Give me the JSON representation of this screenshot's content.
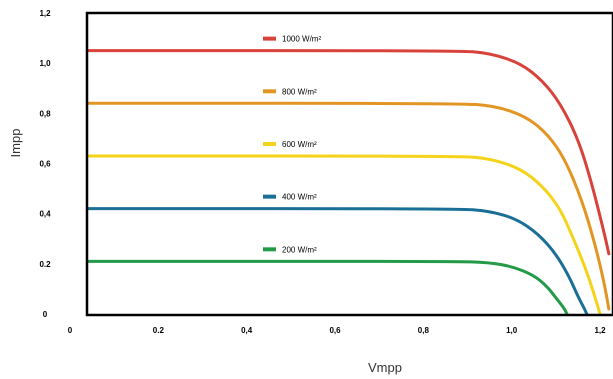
{
  "chart_data": {
    "type": "line",
    "title": "",
    "xlabel": "Vmpp",
    "ylabel": "Impp",
    "xlim": [
      0,
      1.22
    ],
    "ylim": [
      0,
      1.2
    ],
    "grid": false,
    "legend_placement": "inline-center",
    "x_ticks": [
      "0",
      "0.2",
      "0,4",
      "0,6",
      "0,8",
      "1,0",
      "1,2"
    ],
    "y_ticks": [
      "0",
      "0.2",
      "0,4",
      "0,6",
      "0,8",
      "1,0",
      "1,2"
    ],
    "x_tick_values": [
      0,
      0.2,
      0.4,
      0.6,
      0.8,
      1.0,
      1.2
    ],
    "y_tick_values": [
      0,
      0.2,
      0.4,
      0.6,
      0.8,
      1.0,
      1.2
    ],
    "series": [
      {
        "name": "1000 W/m²",
        "color": "#d9423a",
        "x": [
          0,
          0.88,
          0.95,
          1.02,
          1.07,
          1.11,
          1.15,
          1.18,
          1.21,
          1.22
        ],
        "y": [
          1.05,
          1.05,
          1.04,
          1.0,
          0.93,
          0.84,
          0.7,
          0.53,
          0.32,
          0.24
        ]
      },
      {
        "name": "800 W/m²",
        "color": "#e29523",
        "x": [
          0,
          0.88,
          0.96,
          1.03,
          1.08,
          1.12,
          1.16,
          1.19,
          1.21,
          1.22
        ],
        "y": [
          0.84,
          0.84,
          0.83,
          0.79,
          0.72,
          0.62,
          0.45,
          0.27,
          0.12,
          0.02
        ]
      },
      {
        "name": "600 W/m²",
        "color": "#f5d31a",
        "x": [
          0,
          0.88,
          0.95,
          1.02,
          1.07,
          1.11,
          1.14,
          1.17,
          1.19,
          1.2
        ],
        "y": [
          0.63,
          0.63,
          0.62,
          0.58,
          0.51,
          0.42,
          0.3,
          0.17,
          0.06,
          0.0
        ]
      },
      {
        "name": "400 W/m²",
        "color": "#1a6f96",
        "x": [
          0,
          0.88,
          0.95,
          1.01,
          1.06,
          1.1,
          1.13,
          1.15,
          1.165,
          1.17
        ],
        "y": [
          0.42,
          0.42,
          0.41,
          0.38,
          0.32,
          0.24,
          0.15,
          0.07,
          0.02,
          0.0
        ]
      },
      {
        "name": "200 W/m²",
        "color": "#239a48",
        "x": [
          0,
          0.88,
          0.95,
          1.0,
          1.05,
          1.08,
          1.1,
          1.12,
          1.125
        ],
        "y": [
          0.21,
          0.21,
          0.205,
          0.19,
          0.155,
          0.11,
          0.065,
          0.02,
          0.0
        ]
      }
    ]
  }
}
